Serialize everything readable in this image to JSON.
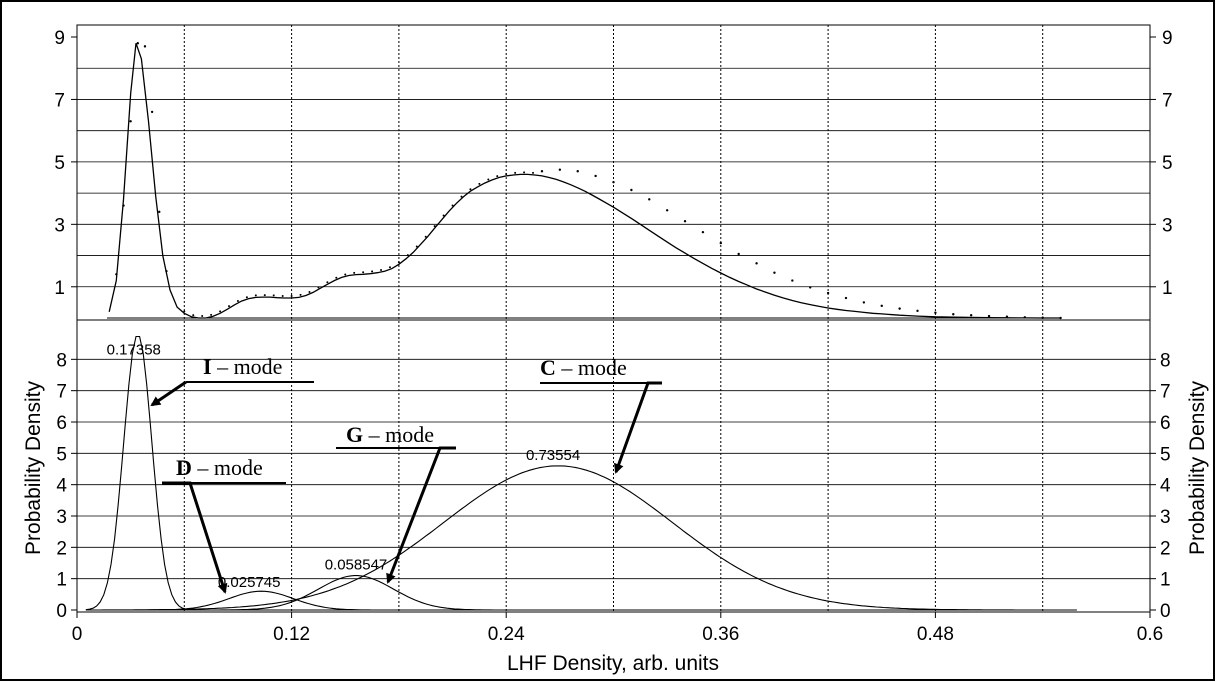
{
  "chart_data": [
    {
      "type": "line",
      "panel": "top",
      "title": "",
      "xlim": [
        0,
        0.6
      ],
      "ylim": [
        0,
        9
      ],
      "left_ticks": [
        "1",
        "3",
        "5",
        "7",
        "9"
      ],
      "right_ticks": [
        "1",
        "3",
        "5",
        "7",
        "9"
      ],
      "grid": "vertical dotted every 0.06, horizontal solid every 1",
      "series": [
        {
          "style": "solid",
          "x": [
            0.018,
            0.022,
            0.026,
            0.03,
            0.033,
            0.036,
            0.04,
            0.044,
            0.048,
            0.052,
            0.056,
            0.06,
            0.064,
            0.068,
            0.072,
            0.076,
            0.08,
            0.084,
            0.088,
            0.092,
            0.096,
            0.1,
            0.104,
            0.108,
            0.112,
            0.116,
            0.12,
            0.124,
            0.128,
            0.132,
            0.136,
            0.14,
            0.144,
            0.148,
            0.152,
            0.156,
            0.16,
            0.164,
            0.168,
            0.172,
            0.176,
            0.18,
            0.184,
            0.188,
            0.192,
            0.196,
            0.2,
            0.204,
            0.208,
            0.212,
            0.216,
            0.22,
            0.224,
            0.228,
            0.232,
            0.236,
            0.24,
            0.244,
            0.248,
            0.252,
            0.256,
            0.26,
            0.264,
            0.268,
            0.272,
            0.276,
            0.28,
            0.284,
            0.288,
            0.292,
            0.296,
            0.3,
            0.305,
            0.31,
            0.315,
            0.32,
            0.325,
            0.33,
            0.335,
            0.34,
            0.345,
            0.35,
            0.355,
            0.36,
            0.365,
            0.37,
            0.375,
            0.38,
            0.385,
            0.39,
            0.395,
            0.4,
            0.405,
            0.41,
            0.415,
            0.42,
            0.425,
            0.43,
            0.435,
            0.44,
            0.445,
            0.45,
            0.46,
            0.47,
            0.48,
            0.49,
            0.5,
            0.51,
            0.52,
            0.53,
            0.54,
            0.55
          ],
          "y": [
            0.2,
            1.2,
            3.8,
            7.2,
            8.8,
            8.3,
            6.3,
            3.9,
            2.0,
            0.9,
            0.35,
            0.15,
            0.04,
            0.0,
            0.0,
            0.05,
            0.15,
            0.28,
            0.42,
            0.54,
            0.62,
            0.66,
            0.67,
            0.67,
            0.65,
            0.64,
            0.64,
            0.66,
            0.72,
            0.82,
            0.95,
            1.08,
            1.2,
            1.3,
            1.36,
            1.39,
            1.4,
            1.42,
            1.45,
            1.5,
            1.58,
            1.72,
            1.9,
            2.1,
            2.35,
            2.6,
            2.88,
            3.15,
            3.42,
            3.66,
            3.88,
            4.06,
            4.2,
            4.32,
            4.42,
            4.5,
            4.55,
            4.58,
            4.6,
            4.6,
            4.58,
            4.55,
            4.5,
            4.44,
            4.36,
            4.27,
            4.17,
            4.06,
            3.94,
            3.81,
            3.68,
            3.55,
            3.37,
            3.19,
            3.0,
            2.81,
            2.62,
            2.43,
            2.25,
            2.08,
            1.91,
            1.75,
            1.59,
            1.44,
            1.3,
            1.17,
            1.05,
            0.93,
            0.83,
            0.73,
            0.64,
            0.56,
            0.49,
            0.43,
            0.37,
            0.32,
            0.28,
            0.24,
            0.21,
            0.18,
            0.15,
            0.13,
            0.09,
            0.06,
            0.04,
            0.03,
            0.02,
            0.01,
            0.005,
            0.003,
            0.001,
            0.0
          ]
        },
        {
          "style": "dotted",
          "x": [
            0.022,
            0.026,
            0.03,
            0.034,
            0.038,
            0.042,
            0.046,
            0.05,
            0.26,
            0.27,
            0.28,
            0.29,
            0.3,
            0.31,
            0.32,
            0.33,
            0.34,
            0.35,
            0.36,
            0.37,
            0.38,
            0.39,
            0.4,
            0.41,
            0.42,
            0.43,
            0.44,
            0.45,
            0.46,
            0.47,
            0.48,
            0.49,
            0.5,
            0.51,
            0.52,
            0.53,
            0.54,
            0.55
          ],
          "y": [
            1.4,
            3.6,
            6.3,
            8.8,
            8.7,
            6.6,
            3.4,
            1.5,
            4.7,
            4.75,
            4.7,
            4.55,
            4.35,
            4.1,
            3.8,
            3.45,
            3.1,
            2.75,
            2.4,
            2.05,
            1.75,
            1.45,
            1.2,
            0.98,
            0.8,
            0.64,
            0.5,
            0.39,
            0.3,
            0.23,
            0.17,
            0.12,
            0.09,
            0.06,
            0.04,
            0.02,
            0.01,
            0.0
          ]
        }
      ]
    },
    {
      "type": "line",
      "panel": "bottom",
      "xlabel": "LHF Density, arb. units",
      "ylabel": "Probability Density",
      "ylabel_right": "Probability Density",
      "xlim": [
        0,
        0.6
      ],
      "ylim": [
        0,
        9
      ],
      "x_ticks": [
        "0",
        "0.12",
        "0.24",
        "0.36",
        "0.48",
        "0.6"
      ],
      "left_ticks": [
        "0",
        "1",
        "2",
        "3",
        "4",
        "5",
        "6",
        "7",
        "8"
      ],
      "right_ticks": [
        "0",
        "1",
        "2",
        "3",
        "4",
        "5",
        "6",
        "7",
        "8"
      ],
      "grid": "vertical dotted every 0.06, horizontal solid every 1",
      "series": [
        {
          "mode": "I",
          "mu": 0.034,
          "sigma": 0.0079,
          "peak": 8.8
        },
        {
          "mode": "D",
          "mu": 0.103,
          "sigma": 0.018,
          "peak": 0.6
        },
        {
          "mode": "G",
          "mu": 0.156,
          "sigma": 0.021,
          "peak": 1.1
        },
        {
          "mode": "C",
          "mu": 0.269,
          "sigma": 0.064,
          "peak": 4.6
        }
      ],
      "peak_labels": [
        "0.17358",
        "0.025745",
        "0.058547",
        "0.73554"
      ],
      "annotations": [
        {
          "letter": "I",
          "text": " – mode"
        },
        {
          "letter": "D",
          "text": " – mode"
        },
        {
          "letter": "G",
          "text": " – mode"
        },
        {
          "letter": "C",
          "text": " – mode"
        }
      ]
    }
  ]
}
